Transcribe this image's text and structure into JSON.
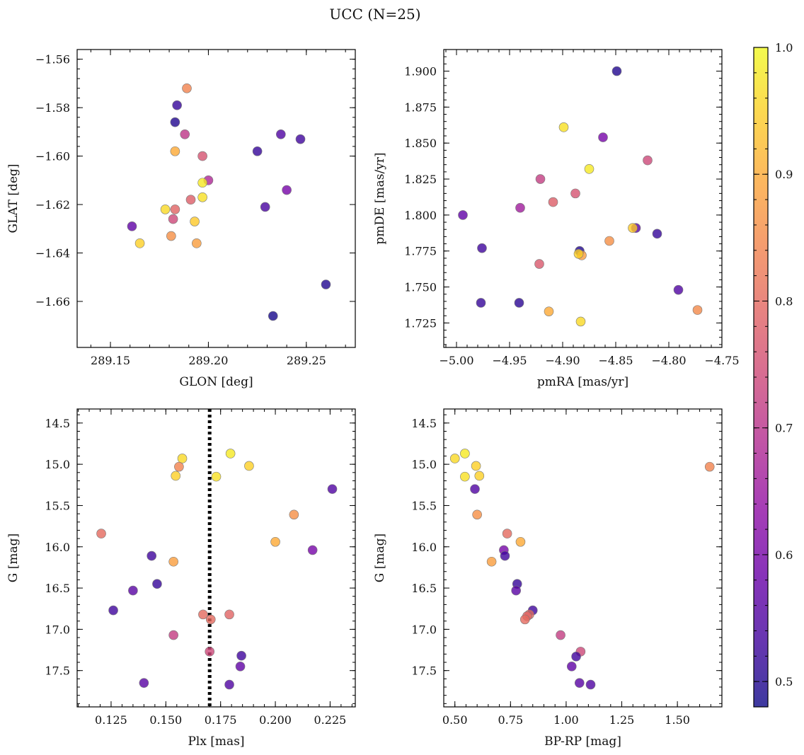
{
  "figure": {
    "title": "UCC (N=25)"
  },
  "colormap": {
    "name": "plasma",
    "stops": [
      "#0d0887",
      "#41049d",
      "#6a00a8",
      "#8f0da4",
      "#b12a90",
      "#cc4778",
      "#e16462",
      "#f2844b",
      "#fca636",
      "#fcce25",
      "#f0f921"
    ],
    "alpha": 0.8,
    "edge_color": "#777777",
    "vmin": 0.48,
    "vmax": 1.0,
    "ticks": [
      0.5,
      0.6,
      0.7,
      0.8,
      0.9,
      1.0
    ],
    "tick_labels": [
      "0.5",
      "0.6",
      "0.7",
      "0.8",
      "0.9",
      "1.0"
    ]
  },
  "reference_line": {
    "panel": 2,
    "x": 0.17,
    "style": "dotted",
    "color": "#000000"
  },
  "chart_data": [
    {
      "type": "scatter",
      "title": "",
      "xlabel": "GLON [deg]",
      "ylabel": "GLAT [deg]",
      "xlim": [
        289.133,
        289.275
      ],
      "ylim": [
        -1.679,
        -1.556
      ],
      "invert_y": false,
      "xticks": [
        289.15,
        289.2,
        289.25
      ],
      "xtick_labels": [
        "289.15",
        "289.20",
        "289.25"
      ],
      "yticks": [
        -1.56,
        -1.58,
        -1.6,
        -1.62,
        -1.64,
        -1.66
      ],
      "ytick_labels": [
        "−1.56",
        "−1.58",
        "−1.60",
        "−1.62",
        "−1.64",
        "−1.66"
      ],
      "points": [
        {
          "x": 289.189,
          "y": -1.572,
          "c": 0.84
        },
        {
          "x": 289.184,
          "y": -1.579,
          "c": 0.52
        },
        {
          "x": 289.183,
          "y": -1.586,
          "c": 0.5
        },
        {
          "x": 289.188,
          "y": -1.591,
          "c": 0.71
        },
        {
          "x": 289.183,
          "y": -1.598,
          "c": 0.9
        },
        {
          "x": 289.197,
          "y": -1.6,
          "c": 0.76
        },
        {
          "x": 289.2,
          "y": -1.61,
          "c": 0.68
        },
        {
          "x": 289.197,
          "y": -1.611,
          "c": 0.98
        },
        {
          "x": 289.197,
          "y": -1.617,
          "c": 0.97
        },
        {
          "x": 289.191,
          "y": -1.618,
          "c": 0.78
        },
        {
          "x": 289.183,
          "y": -1.622,
          "c": 0.79
        },
        {
          "x": 289.178,
          "y": -1.622,
          "c": 0.96
        },
        {
          "x": 289.182,
          "y": -1.626,
          "c": 0.74
        },
        {
          "x": 289.193,
          "y": -1.627,
          "c": 0.94
        },
        {
          "x": 289.181,
          "y": -1.633,
          "c": 0.86
        },
        {
          "x": 289.194,
          "y": -1.636,
          "c": 0.88
        },
        {
          "x": 289.165,
          "y": -1.636,
          "c": 0.95
        },
        {
          "x": 289.161,
          "y": -1.629,
          "c": 0.57
        },
        {
          "x": 289.225,
          "y": -1.598,
          "c": 0.52
        },
        {
          "x": 289.237,
          "y": -1.591,
          "c": 0.55
        },
        {
          "x": 289.247,
          "y": -1.593,
          "c": 0.53
        },
        {
          "x": 289.24,
          "y": -1.614,
          "c": 0.6
        },
        {
          "x": 289.229,
          "y": -1.621,
          "c": 0.54
        },
        {
          "x": 289.26,
          "y": -1.653,
          "c": 0.5
        },
        {
          "x": 289.233,
          "y": -1.666,
          "c": 0.49
        }
      ]
    },
    {
      "type": "scatter",
      "title": "",
      "xlabel": "pmRA [mas/yr]",
      "ylabel": "pmDE [mas/yr]",
      "xlim": [
        -5.012,
        -4.75
      ],
      "ylim": [
        1.708,
        1.915
      ],
      "invert_y": false,
      "xticks": [
        -5.0,
        -4.95,
        -4.9,
        -4.85,
        -4.8,
        -4.75
      ],
      "xtick_labels": [
        "−5.00",
        "−4.95",
        "−4.90",
        "−4.85",
        "−4.80",
        "−4.75"
      ],
      "yticks": [
        1.725,
        1.75,
        1.775,
        1.8,
        1.825,
        1.85,
        1.875,
        1.9
      ],
      "ytick_labels": [
        "1.725",
        "1.750",
        "1.775",
        "1.800",
        "1.825",
        "1.850",
        "1.875",
        "1.900"
      ],
      "points": [
        {
          "x": -4.849,
          "y": 1.9,
          "c": 0.5
        },
        {
          "x": -4.899,
          "y": 1.861,
          "c": 0.97
        },
        {
          "x": -4.862,
          "y": 1.854,
          "c": 0.6
        },
        {
          "x": -4.82,
          "y": 1.838,
          "c": 0.74
        },
        {
          "x": -4.875,
          "y": 1.832,
          "c": 0.98
        },
        {
          "x": -4.921,
          "y": 1.825,
          "c": 0.72
        },
        {
          "x": -4.888,
          "y": 1.815,
          "c": 0.76
        },
        {
          "x": -4.909,
          "y": 1.809,
          "c": 0.78
        },
        {
          "x": -4.94,
          "y": 1.805,
          "c": 0.66
        },
        {
          "x": -4.994,
          "y": 1.8,
          "c": 0.57
        },
        {
          "x": -4.831,
          "y": 1.791,
          "c": 0.56
        },
        {
          "x": -4.834,
          "y": 1.791,
          "c": 0.94
        },
        {
          "x": -4.811,
          "y": 1.787,
          "c": 0.52
        },
        {
          "x": -4.856,
          "y": 1.782,
          "c": 0.86
        },
        {
          "x": -4.976,
          "y": 1.777,
          "c": 0.53
        },
        {
          "x": -4.884,
          "y": 1.775,
          "c": 0.5
        },
        {
          "x": -4.882,
          "y": 1.772,
          "c": 0.88
        },
        {
          "x": -4.885,
          "y": 1.773,
          "c": 0.95
        },
        {
          "x": -4.922,
          "y": 1.766,
          "c": 0.77
        },
        {
          "x": -4.791,
          "y": 1.748,
          "c": 0.55
        },
        {
          "x": -4.977,
          "y": 1.739,
          "c": 0.52
        },
        {
          "x": -4.941,
          "y": 1.739,
          "c": 0.51
        },
        {
          "x": -4.773,
          "y": 1.734,
          "c": 0.85
        },
        {
          "x": -4.913,
          "y": 1.733,
          "c": 0.9
        },
        {
          "x": -4.883,
          "y": 1.726,
          "c": 0.96
        }
      ]
    },
    {
      "type": "scatter",
      "title": "",
      "xlabel": "Plx [mas]",
      "ylabel": "G [mag]",
      "xlim": [
        0.1095,
        0.2365
      ],
      "ylim": [
        14.33,
        17.94
      ],
      "invert_y": true,
      "xticks": [
        0.125,
        0.15,
        0.175,
        0.2,
        0.225
      ],
      "xtick_labels": [
        "0.125",
        "0.150",
        "0.175",
        "0.200",
        "0.225"
      ],
      "yticks": [
        14.5,
        15.0,
        15.5,
        16.0,
        16.5,
        17.0,
        17.5
      ],
      "ytick_labels": [
        "14.5",
        "15.0",
        "15.5",
        "16.0",
        "16.5",
        "17.0",
        "17.5"
      ],
      "points": [
        {
          "x": 0.1795,
          "y": 14.87,
          "c": 0.98
        },
        {
          "x": 0.1575,
          "y": 14.93,
          "c": 0.96
        },
        {
          "x": 0.188,
          "y": 15.02,
          "c": 0.95
        },
        {
          "x": 0.156,
          "y": 15.03,
          "c": 0.84
        },
        {
          "x": 0.1545,
          "y": 15.14,
          "c": 0.95
        },
        {
          "x": 0.173,
          "y": 15.15,
          "c": 0.97
        },
        {
          "x": 0.226,
          "y": 15.3,
          "c": 0.55
        },
        {
          "x": 0.2085,
          "y": 15.61,
          "c": 0.86
        },
        {
          "x": 0.1205,
          "y": 15.84,
          "c": 0.8
        },
        {
          "x": 0.2,
          "y": 15.94,
          "c": 0.9
        },
        {
          "x": 0.217,
          "y": 16.04,
          "c": 0.6
        },
        {
          "x": 0.1435,
          "y": 16.11,
          "c": 0.53
        },
        {
          "x": 0.1535,
          "y": 16.18,
          "c": 0.88
        },
        {
          "x": 0.146,
          "y": 16.45,
          "c": 0.52
        },
        {
          "x": 0.135,
          "y": 16.53,
          "c": 0.56
        },
        {
          "x": 0.126,
          "y": 16.77,
          "c": 0.53
        },
        {
          "x": 0.167,
          "y": 16.82,
          "c": 0.8
        },
        {
          "x": 0.179,
          "y": 16.82,
          "c": 0.79
        },
        {
          "x": 0.1705,
          "y": 16.88,
          "c": 0.8
        },
        {
          "x": 0.1535,
          "y": 17.07,
          "c": 0.72
        },
        {
          "x": 0.17,
          "y": 17.27,
          "c": 0.74
        },
        {
          "x": 0.1845,
          "y": 17.32,
          "c": 0.53
        },
        {
          "x": 0.184,
          "y": 17.45,
          "c": 0.57
        },
        {
          "x": 0.14,
          "y": 17.65,
          "c": 0.56
        },
        {
          "x": 0.179,
          "y": 17.67,
          "c": 0.55
        }
      ]
    },
    {
      "type": "scatter",
      "title": "",
      "xlabel": "BP-RP [mag]",
      "ylabel": "G [mag]",
      "xlim": [
        0.45,
        1.7
      ],
      "ylim": [
        14.33,
        17.94
      ],
      "invert_y": true,
      "xticks": [
        0.5,
        0.75,
        1.0,
        1.25,
        1.5
      ],
      "xtick_labels": [
        "0.50",
        "0.75",
        "1.00",
        "1.25",
        "1.50"
      ],
      "yticks": [
        14.5,
        15.0,
        15.5,
        16.0,
        16.5,
        17.0,
        17.5
      ],
      "ytick_labels": [
        "14.5",
        "15.0",
        "15.5",
        "16.0",
        "16.5",
        "17.0",
        "17.5"
      ],
      "points": [
        {
          "x": 0.545,
          "y": 14.87,
          "c": 0.98
        },
        {
          "x": 0.5,
          "y": 14.93,
          "c": 0.96
        },
        {
          "x": 0.595,
          "y": 15.02,
          "c": 0.95
        },
        {
          "x": 1.645,
          "y": 15.03,
          "c": 0.84
        },
        {
          "x": 0.61,
          "y": 15.14,
          "c": 0.95
        },
        {
          "x": 0.545,
          "y": 15.15,
          "c": 0.97
        },
        {
          "x": 0.59,
          "y": 15.3,
          "c": 0.55
        },
        {
          "x": 0.6,
          "y": 15.61,
          "c": 0.86
        },
        {
          "x": 0.735,
          "y": 15.84,
          "c": 0.8
        },
        {
          "x": 0.795,
          "y": 15.94,
          "c": 0.9
        },
        {
          "x": 0.72,
          "y": 16.04,
          "c": 0.6
        },
        {
          "x": 0.725,
          "y": 16.11,
          "c": 0.53
        },
        {
          "x": 0.665,
          "y": 16.18,
          "c": 0.88
        },
        {
          "x": 0.78,
          "y": 16.45,
          "c": 0.52
        },
        {
          "x": 0.775,
          "y": 16.53,
          "c": 0.56
        },
        {
          "x": 0.85,
          "y": 16.77,
          "c": 0.53
        },
        {
          "x": 0.835,
          "y": 16.82,
          "c": 0.8
        },
        {
          "x": 0.825,
          "y": 16.84,
          "c": 0.79
        },
        {
          "x": 0.815,
          "y": 16.88,
          "c": 0.8
        },
        {
          "x": 0.975,
          "y": 17.07,
          "c": 0.72
        },
        {
          "x": 1.065,
          "y": 17.27,
          "c": 0.74
        },
        {
          "x": 1.045,
          "y": 17.33,
          "c": 0.53
        },
        {
          "x": 1.025,
          "y": 17.45,
          "c": 0.57
        },
        {
          "x": 1.06,
          "y": 17.65,
          "c": 0.56
        },
        {
          "x": 1.11,
          "y": 17.67,
          "c": 0.55
        }
      ]
    }
  ]
}
